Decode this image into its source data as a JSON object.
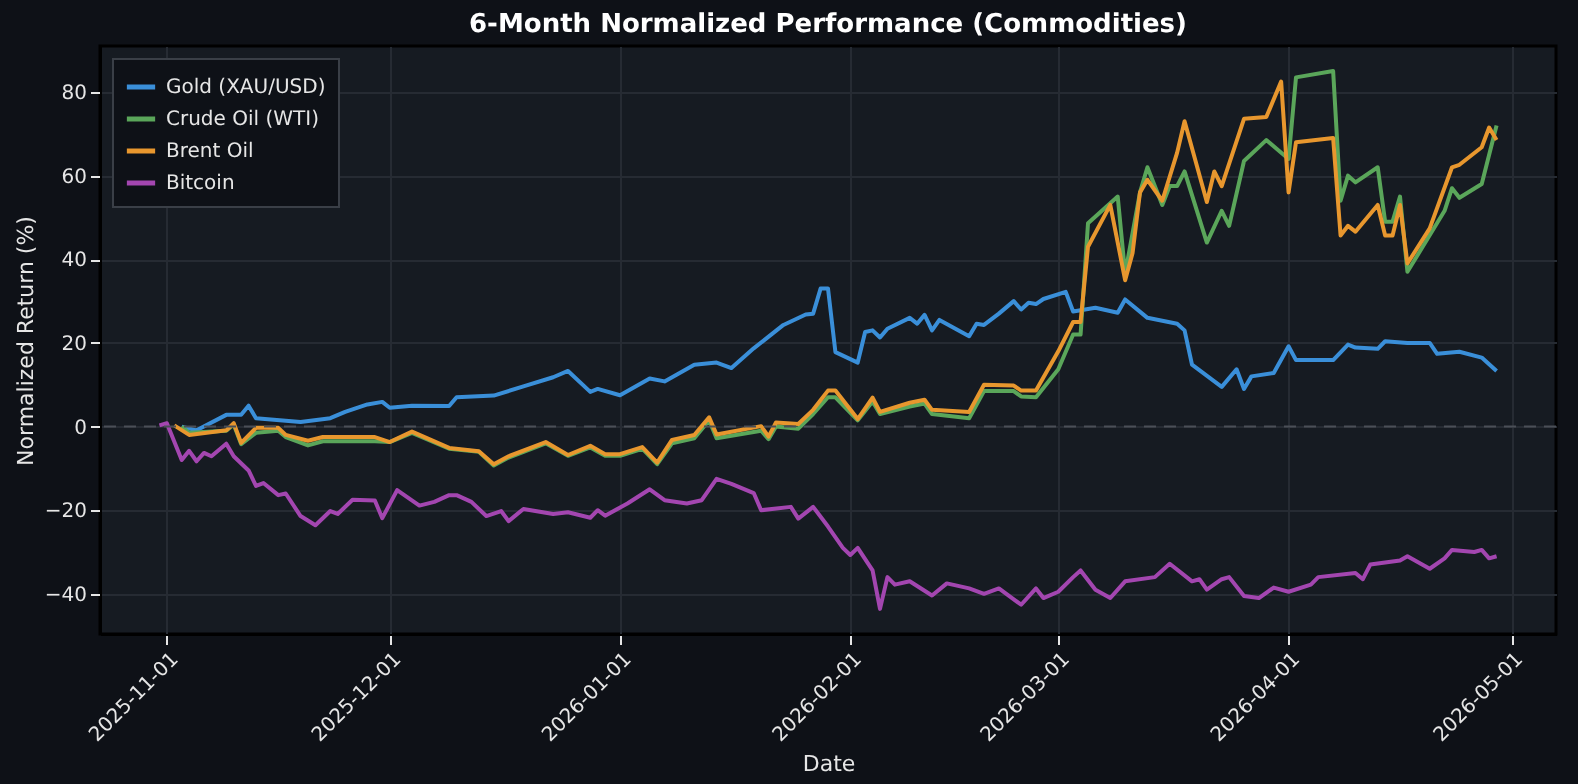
{
  "chart_data": {
    "type": "line",
    "title": "6-Month Normalized Performance (Commodities)",
    "xlabel": "Date",
    "ylabel": "Normalized Return (%)",
    "xlim": [
      "2025-10-23",
      "2026-05-07"
    ],
    "ylim": [
      -49.6,
      91
    ],
    "xticks": [
      "2025-11-01",
      "2025-12-01",
      "2026-01-01",
      "2026-02-01",
      "2026-03-01",
      "2026-04-01",
      "2026-05-01"
    ],
    "yticks": [
      -40,
      -20,
      0,
      20,
      40,
      60,
      80
    ],
    "grid": true,
    "legend": "top left",
    "line_style": "solid",
    "marker": "none",
    "ref_lines": [
      {
        "axis": "y",
        "value": 0,
        "color": "#4a4f57",
        "line_style": "dashed"
      }
    ],
    "series": [
      {
        "name": "Gold (XAU/USD)",
        "color": "#3a8fd9",
        "x": [
          "2025-11-03",
          "2025-11-05",
          "2025-11-09",
          "2025-11-11",
          "2025-11-12",
          "2025-11-13",
          "2025-11-19",
          "2025-11-23",
          "2025-11-25",
          "2025-11-28",
          "2025-11-30",
          "2025-12-01",
          "2025-12-04",
          "2025-12-09",
          "2025-12-10",
          "2025-12-15",
          "2025-12-19",
          "2025-12-23",
          "2025-12-25",
          "2025-12-28",
          "2025-12-29",
          "2026-01-01",
          "2026-01-05",
          "2026-01-07",
          "2026-01-11",
          "2026-01-14",
          "2026-01-16",
          "2026-01-19",
          "2026-01-23",
          "2026-01-26",
          "2026-01-27",
          "2026-01-28",
          "2026-01-29",
          "2026-01-30",
          "2026-02-02",
          "2026-02-03",
          "2026-02-04",
          "2026-02-05",
          "2026-02-06",
          "2026-02-09",
          "2026-02-10",
          "2026-02-11",
          "2026-02-12",
          "2026-02-13",
          "2026-02-17",
          "2026-02-18",
          "2026-02-19",
          "2026-02-21",
          "2026-02-23",
          "2026-02-24",
          "2026-02-25",
          "2026-02-26",
          "2026-02-27",
          "2026-03-02",
          "2026-03-03",
          "2026-03-06",
          "2026-03-09",
          "2026-03-10",
          "2026-03-13",
          "2026-03-17",
          "2026-03-18",
          "2026-03-19",
          "2026-03-23",
          "2026-03-25",
          "2026-03-26",
          "2026-03-27",
          "2026-03-30",
          "2026-04-01",
          "2026-04-02",
          "2026-04-07",
          "2026-04-09",
          "2026-04-10",
          "2026-04-13",
          "2026-04-14",
          "2026-04-17",
          "2026-04-20",
          "2026-04-21",
          "2026-04-24",
          "2026-04-27",
          "2026-04-29"
        ],
        "values": [
          0,
          -0.9,
          2.8,
          2.8,
          5,
          2,
          1.1,
          2,
          3.5,
          5.3,
          5.9,
          4.5,
          5,
          4.9,
          7,
          7.4,
          9.6,
          11.8,
          13.3,
          8.3,
          9,
          7.5,
          11.5,
          10.8,
          14.8,
          15.3,
          14,
          18.7,
          24.3,
          26.8,
          27,
          33,
          33,
          17.8,
          15.3,
          22.6,
          23,
          21.3,
          23.4,
          26,
          24.6,
          26.7,
          23,
          25.5,
          21.6,
          24.6,
          24.3,
          27,
          30,
          28,
          29.6,
          29.3,
          30.5,
          32.2,
          27.5,
          28.4,
          27.2,
          30.4,
          26,
          24.6,
          23,
          14.8,
          9.5,
          13.7,
          9,
          12,
          12.8,
          19.2,
          15.9,
          15.9,
          19.6,
          18.9,
          18.6,
          20.4,
          20,
          20,
          17.4,
          17.9,
          16.5,
          13.3
        ]
      },
      {
        "name": "Crude Oil (WTI)",
        "color": "#5aa65a",
        "x": [
          "2025-11-03",
          "2025-11-04",
          "2025-11-09",
          "2025-11-10",
          "2025-11-11",
          "2025-11-13",
          "2025-11-16",
          "2025-11-17",
          "2025-11-20",
          "2025-11-22",
          "2025-11-29",
          "2025-12-01",
          "2025-12-04",
          "2025-12-09",
          "2025-12-13",
          "2025-12-15",
          "2025-12-17",
          "2025-12-22",
          "2025-12-25",
          "2025-12-28",
          "2025-12-30",
          "2026-01-01",
          "2026-01-04",
          "2026-01-06",
          "2026-01-08",
          "2026-01-11",
          "2026-01-13",
          "2026-01-14",
          "2026-01-20",
          "2026-01-21",
          "2026-01-22",
          "2026-01-25",
          "2026-01-27",
          "2026-01-29",
          "2026-01-30",
          "2026-02-02",
          "2026-02-04",
          "2026-02-05",
          "2026-02-09",
          "2026-02-11",
          "2026-02-12",
          "2026-02-17",
          "2026-02-19",
          "2026-02-23",
          "2026-02-24",
          "2026-02-26",
          "2026-03-01",
          "2026-03-03",
          "2026-03-04",
          "2026-03-05",
          "2026-03-09",
          "2026-03-10",
          "2026-03-12",
          "2026-03-13",
          "2026-03-15",
          "2026-03-16",
          "2026-03-17",
          "2026-03-18",
          "2026-03-21",
          "2026-03-23",
          "2026-03-24",
          "2026-03-26",
          "2026-03-29",
          "2026-04-01",
          "2026-04-02",
          "2026-04-07",
          "2026-04-08",
          "2026-04-09",
          "2026-04-10",
          "2026-04-13",
          "2026-04-14",
          "2026-04-15",
          "2026-04-16",
          "2026-04-17",
          "2026-04-22",
          "2026-04-23",
          "2026-04-24",
          "2026-04-27",
          "2026-04-29"
        ],
        "values": [
          0,
          -1.5,
          -1,
          0.5,
          -4.2,
          -1.5,
          -1,
          -2.5,
          -4.5,
          -3.5,
          -3.5,
          -3.7,
          -1.5,
          -5.3,
          -6,
          -9.3,
          -7.4,
          -4,
          -7,
          -5,
          -7,
          -7,
          -5.3,
          -9,
          -4,
          -2.8,
          1.5,
          -2.8,
          -1,
          -3,
          0,
          -0.5,
          3,
          7,
          7,
          1.5,
          6,
          3,
          4.8,
          5.5,
          3,
          2,
          8.5,
          8.5,
          7.2,
          7,
          13.7,
          22,
          22,
          48.6,
          55,
          36.5,
          56,
          62,
          53,
          57.5,
          57.5,
          61,
          44,
          51.6,
          48,
          63.5,
          68.5,
          64,
          83.5,
          85,
          54,
          60,
          58.4,
          62,
          49,
          49,
          55,
          37,
          51.6,
          57,
          54.7,
          58,
          72
        ]
      },
      {
        "name": "Brent Oil",
        "color": "#e8972e",
        "x": [
          "2025-11-02",
          "2025-11-04",
          "2025-11-09",
          "2025-11-10",
          "2025-11-11",
          "2025-11-13",
          "2025-11-16",
          "2025-11-17",
          "2025-11-20",
          "2025-11-22",
          "2025-11-29",
          "2025-12-01",
          "2025-12-04",
          "2025-12-09",
          "2025-12-13",
          "2025-12-15",
          "2025-12-17",
          "2025-12-22",
          "2025-12-25",
          "2025-12-28",
          "2025-12-30",
          "2026-01-01",
          "2026-01-04",
          "2026-01-06",
          "2026-01-08",
          "2026-01-11",
          "2026-01-13",
          "2026-01-14",
          "2026-01-20",
          "2026-01-21",
          "2026-01-22",
          "2026-01-25",
          "2026-01-27",
          "2026-01-29",
          "2026-01-30",
          "2026-02-02",
          "2026-02-04",
          "2026-02-05",
          "2026-02-09",
          "2026-02-11",
          "2026-02-12",
          "2026-02-17",
          "2026-02-19",
          "2026-02-23",
          "2026-02-24",
          "2026-02-26",
          "2026-03-01",
          "2026-03-03",
          "2026-03-04",
          "2026-03-05",
          "2026-03-08",
          "2026-03-10",
          "2026-03-11",
          "2026-03-12",
          "2026-03-13",
          "2026-03-15",
          "2026-03-17",
          "2026-03-18",
          "2026-03-21",
          "2026-03-22",
          "2026-03-23",
          "2026-03-26",
          "2026-03-29",
          "2026-03-31",
          "2026-04-01",
          "2026-04-02",
          "2026-04-07",
          "2026-04-08",
          "2026-04-09",
          "2026-04-10",
          "2026-04-13",
          "2026-04-14",
          "2026-04-15",
          "2026-04-16",
          "2026-04-17",
          "2026-04-20",
          "2026-04-23",
          "2026-04-24",
          "2026-04-27",
          "2026-04-28",
          "2026-04-29"
        ],
        "values": [
          0.3,
          -2,
          -0.9,
          0.8,
          -3.9,
          -0.3,
          -0.3,
          -2,
          -3.4,
          -2.5,
          -2.5,
          -3.7,
          -1.2,
          -5.1,
          -5.9,
          -9,
          -7.1,
          -3.7,
          -6.8,
          -4.6,
          -6.6,
          -6.6,
          -4.9,
          -8.6,
          -3.2,
          -2,
          2.2,
          -1.9,
          0.1,
          -2.4,
          1,
          0.6,
          4,
          8.6,
          8.6,
          1.8,
          6.9,
          3.5,
          5.7,
          6.4,
          4,
          3.5,
          10,
          9.8,
          8.6,
          8.6,
          18,
          25,
          25,
          43,
          53,
          35,
          41.5,
          56,
          59,
          54,
          65.5,
          73,
          53.7,
          61,
          57.5,
          73.6,
          74,
          82.5,
          56,
          68,
          69,
          45.7,
          48,
          46.6,
          53,
          45.7,
          45.7,
          53,
          39,
          47.4,
          62,
          62.6,
          66.8,
          71.5,
          68.5
        ]
      },
      {
        "name": "Bitcoin",
        "color": "#a346b0",
        "x": [
          "2025-10-31",
          "2025-11-01",
          "2025-11-03",
          "2025-11-04",
          "2025-11-05",
          "2025-11-06",
          "2025-11-07",
          "2025-11-09",
          "2025-11-10",
          "2025-11-12",
          "2025-11-13",
          "2025-11-14",
          "2025-11-16",
          "2025-11-17",
          "2025-11-19",
          "2025-11-21",
          "2025-11-23",
          "2025-11-24",
          "2025-11-26",
          "2025-11-29",
          "2025-11-30",
          "2025-12-02",
          "2025-12-05",
          "2025-12-07",
          "2025-12-09",
          "2025-12-10",
          "2025-12-12",
          "2025-12-14",
          "2025-12-16",
          "2025-12-17",
          "2025-12-19",
          "2025-12-23",
          "2025-12-25",
          "2025-12-28",
          "2025-12-29",
          "2025-12-30",
          "2026-01-02",
          "2026-01-05",
          "2026-01-07",
          "2026-01-10",
          "2026-01-12",
          "2026-01-14",
          "2026-01-16",
          "2026-01-19",
          "2026-01-20",
          "2026-01-24",
          "2026-01-25",
          "2026-01-27",
          "2026-01-29",
          "2026-01-31",
          "2026-02-01",
          "2026-02-02",
          "2026-02-04",
          "2026-02-05",
          "2026-02-06",
          "2026-02-07",
          "2026-02-09",
          "2026-02-12",
          "2026-02-14",
          "2026-02-17",
          "2026-02-19",
          "2026-02-21",
          "2026-02-24",
          "2026-02-26",
          "2026-02-27",
          "2026-03-01",
          "2026-03-03",
          "2026-03-04",
          "2026-03-06",
          "2026-03-08",
          "2026-03-10",
          "2026-03-14",
          "2026-03-16",
          "2026-03-19",
          "2026-03-20",
          "2026-03-21",
          "2026-03-23",
          "2026-03-24",
          "2026-03-26",
          "2026-03-28",
          "2026-03-30",
          "2026-04-01",
          "2026-04-04",
          "2026-04-05",
          "2026-04-10",
          "2026-04-11",
          "2026-04-12",
          "2026-04-16",
          "2026-04-17",
          "2026-04-20",
          "2026-04-22",
          "2026-04-23",
          "2026-04-26",
          "2026-04-27",
          "2026-04-28",
          "2026-04-29"
        ],
        "values": [
          0.3,
          0.8,
          -8,
          -5.8,
          -8.3,
          -6.3,
          -7.1,
          -4.1,
          -7.1,
          -10.5,
          -14.2,
          -13.5,
          -16.4,
          -16,
          -21.4,
          -23.6,
          -20.2,
          -20.9,
          -17.5,
          -17.7,
          -21.9,
          -15.2,
          -18.9,
          -18,
          -16.4,
          -16.4,
          -18,
          -21.4,
          -20.2,
          -22.6,
          -19.7,
          -20.9,
          -20.5,
          -21.8,
          -20,
          -21.3,
          -18.4,
          -15,
          -17.6,
          -18.4,
          -17.6,
          -12.5,
          -13.7,
          -15.9,
          -20,
          -19.2,
          -22,
          -19.2,
          -23.9,
          -29,
          -30.7,
          -29,
          -34.4,
          -43.6,
          -36,
          -37.8,
          -37,
          -40.4,
          -37.5,
          -38.7,
          -40,
          -38.7,
          -42.6,
          -38.7,
          -41,
          -39.5,
          -36,
          -34.4,
          -39,
          -41,
          -37,
          -36,
          -32.8,
          -37,
          -36.5,
          -39,
          -36.5,
          -36,
          -40.5,
          -41,
          -38.5,
          -39.5,
          -37.8,
          -36,
          -35,
          -36.5,
          -33,
          -32,
          -31,
          -34,
          -31.5,
          -29.5,
          -30,
          -29.5,
          -31.5,
          -31
        ]
      }
    ]
  }
}
